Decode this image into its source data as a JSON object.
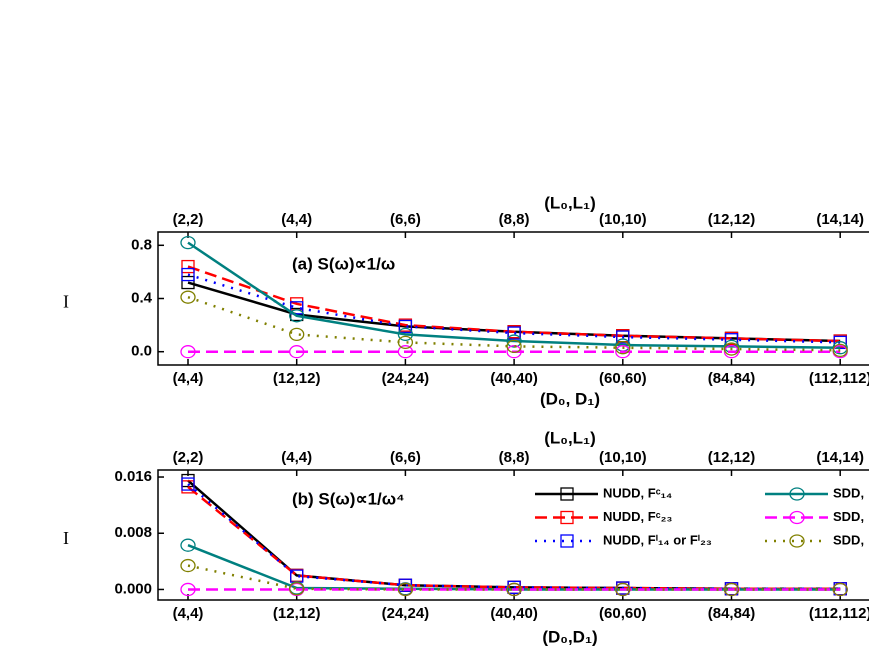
{
  "chart_data": [
    {
      "type": "line",
      "title": "(a) S(ω)∝1/ω",
      "xlabel": "(D₀, D₁)",
      "top_xlabel": "(L₀,L₁)",
      "ylabel": "I",
      "categories": [
        "(4,4)",
        "(12,12)",
        "(24,24)",
        "(40,40)",
        "(60,60)",
        "(84,84)",
        "(112,112)"
      ],
      "top_categories": [
        "(2,2)",
        "(4,4)",
        "(6,6)",
        "(8,8)",
        "(10,10)",
        "(12,12)",
        "(14,14)"
      ],
      "ylim": [
        -0.1,
        0.9
      ],
      "yticks": [
        {
          "value": 0,
          "label": "0.0"
        },
        0.4,
        0.8
      ],
      "series": [
        {
          "color": "#000000",
          "marker": "square",
          "dash": "solid",
          "values": [
            0.52,
            0.28,
            0.19,
            0.15,
            0.12,
            0.1,
            0.08
          ]
        },
        {
          "color": "#ff0000",
          "marker": "square",
          "dash": "dash",
          "values": [
            0.64,
            0.36,
            0.2,
            0.15,
            0.12,
            0.1,
            0.08
          ]
        },
        {
          "color": "#0000ff",
          "marker": "square",
          "dash": "dot",
          "values": [
            0.58,
            0.33,
            0.19,
            0.14,
            0.11,
            0.09,
            0.07
          ]
        },
        {
          "color": "#008080",
          "marker": "circle",
          "dash": "solid",
          "values": [
            0.82,
            0.27,
            0.13,
            0.08,
            0.05,
            0.04,
            0.03
          ]
        },
        {
          "color": "#ff00ff",
          "marker": "circle",
          "dash": "dash",
          "values": [
            0,
            0,
            0,
            0,
            0,
            0,
            0
          ]
        },
        {
          "color": "#808000",
          "marker": "circle",
          "dash": "dot",
          "values": [
            0.41,
            0.13,
            0.07,
            0.04,
            0.03,
            0.02,
            0.01
          ]
        }
      ]
    },
    {
      "type": "line",
      "title": "(b) S(ω)∝1/ω⁴",
      "xlabel": "(D₀,D₁)",
      "top_xlabel": "(L₀,L₁)",
      "ylabel": "I",
      "categories": [
        "(4,4)",
        "(12,12)",
        "(24,24)",
        "(40,40)",
        "(60,60)",
        "(84,84)",
        "(112,112)"
      ],
      "top_categories": [
        "(2,2)",
        "(4,4)",
        "(6,6)",
        "(8,8)",
        "(10,10)",
        "(12,12)",
        "(14,14)"
      ],
      "ylim": [
        -0.0015,
        0.017
      ],
      "yticks": [
        {
          "value": 0,
          "label": "0.000"
        },
        0.008,
        0.016
      ],
      "legend": "upper right",
      "series": [
        {
          "name": "NUDD, Fᶜ₁₄",
          "color": "#000000",
          "marker": "square",
          "dash": "solid",
          "values": [
            0.0155,
            0.002,
            0.0006,
            0.0003,
            0.0002,
            0.0001,
            0.0001
          ]
        },
        {
          "name": "NUDD, Fᶜ₂₃",
          "color": "#ff0000",
          "marker": "square",
          "dash": "dash",
          "values": [
            0.0146,
            0.002,
            0.0006,
            0.0003,
            0.0002,
            0.0001,
            0.0001
          ]
        },
        {
          "name": "NUDD, Fⁱ₁₄ or Fⁱ₂₃",
          "color": "#0000ff",
          "marker": "square",
          "dash": "dot",
          "values": [
            0.015,
            0.0019,
            0.0006,
            0.0003,
            0.0002,
            0.0001,
            0.0001
          ]
        },
        {
          "name": "SDD,",
          "color": "#008080",
          "marker": "circle",
          "dash": "solid",
          "values": [
            0.0063,
            0.0002,
            0.0001,
            0,
            0,
            0,
            0
          ]
        },
        {
          "name": "SDD,",
          "color": "#ff00ff",
          "marker": "circle",
          "dash": "dash",
          "values": [
            0,
            0,
            0,
            0,
            0,
            0,
            0
          ]
        },
        {
          "name": "SDD,",
          "color": "#808000",
          "marker": "circle",
          "dash": "dot",
          "values": [
            0.0034,
            0.0001,
            0,
            0,
            0,
            0,
            0
          ]
        }
      ]
    }
  ]
}
